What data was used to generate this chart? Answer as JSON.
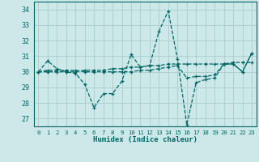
{
  "title": "",
  "xlabel": "Humidex (Indice chaleur)",
  "ylabel": "",
  "background_color": "#cce8e8",
  "grid_color": "#b0d0d0",
  "line_color": "#006666",
  "xlim": [
    -0.5,
    23.5
  ],
  "ylim": [
    26.5,
    34.5
  ],
  "yticks": [
    27,
    28,
    29,
    30,
    31,
    32,
    33,
    34
  ],
  "xticks": [
    0,
    1,
    2,
    3,
    4,
    5,
    6,
    7,
    8,
    9,
    10,
    11,
    12,
    13,
    14,
    15,
    16,
    17,
    18,
    19,
    20,
    21,
    22,
    23
  ],
  "series": [
    [
      30.0,
      30.7,
      30.2,
      30.0,
      29.9,
      29.2,
      27.7,
      28.6,
      28.6,
      29.4,
      31.1,
      30.3,
      30.4,
      32.6,
      33.9,
      30.8,
      26.6,
      29.3,
      29.5,
      29.6,
      30.5,
      30.5,
      30.0,
      31.2
    ],
    [
      30.0,
      30.0,
      30.0,
      30.0,
      30.0,
      30.1,
      30.1,
      30.1,
      30.2,
      30.2,
      30.3,
      30.3,
      30.4,
      30.4,
      30.5,
      30.5,
      30.5,
      30.5,
      30.5,
      30.5,
      30.5,
      30.6,
      30.6,
      30.6
    ],
    [
      30.0,
      30.1,
      30.1,
      30.1,
      30.1,
      30.0,
      30.0,
      30.0,
      30.0,
      30.0,
      30.0,
      30.1,
      30.1,
      30.2,
      30.3,
      30.4,
      29.6,
      29.7,
      29.7,
      29.8,
      30.5,
      30.5,
      30.0,
      31.2
    ]
  ]
}
